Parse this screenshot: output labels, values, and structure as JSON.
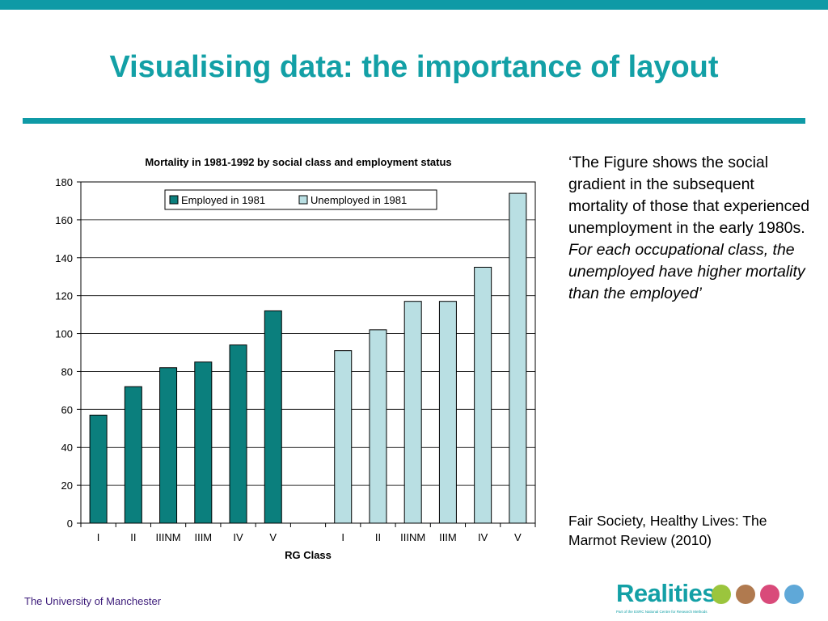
{
  "slide": {
    "title": "Visualising data: the importance of layout"
  },
  "quote": {
    "plain": "‘The Figure shows the social gradient in the subsequent mortality of those that experienced unemployment in the early 1980s. ",
    "italic": "For each occupational class, the unemployed have higher mortality than the employed’"
  },
  "source": {
    "text": "Fair Society, Healthy Lives: The Marmot Review (2010)"
  },
  "footer": {
    "university": "The University of Manchester",
    "logo_text": "Realities",
    "logo_subtext": "Part of the ESRC National Centre for Research Methods"
  },
  "colors": {
    "accent": "#13a0a6",
    "employed": "#0b7f7d",
    "unemployed": "#b9dfe3"
  },
  "chart_data": {
    "type": "bar",
    "title": "Mortality in 1981-1992 by social class and employment status",
    "xlabel": "RG Class",
    "ylabel": "",
    "ylim": [
      0,
      180
    ],
    "yticks": [
      0,
      20,
      40,
      60,
      80,
      100,
      120,
      140,
      160,
      180
    ],
    "legend_position": "top-right",
    "grid": true,
    "series": [
      {
        "name": "Employed in 1981",
        "categories": [
          "I",
          "II",
          "IIINM",
          "IIIM",
          "IV",
          "V"
        ],
        "values": [
          57,
          72,
          82,
          85,
          94,
          112
        ]
      },
      {
        "name": "Unemployed in 1981",
        "categories": [
          "I",
          "II",
          "IIINM",
          "IIIM",
          "IV",
          "V"
        ],
        "values": [
          91,
          102,
          117,
          117,
          135,
          174
        ]
      }
    ]
  }
}
